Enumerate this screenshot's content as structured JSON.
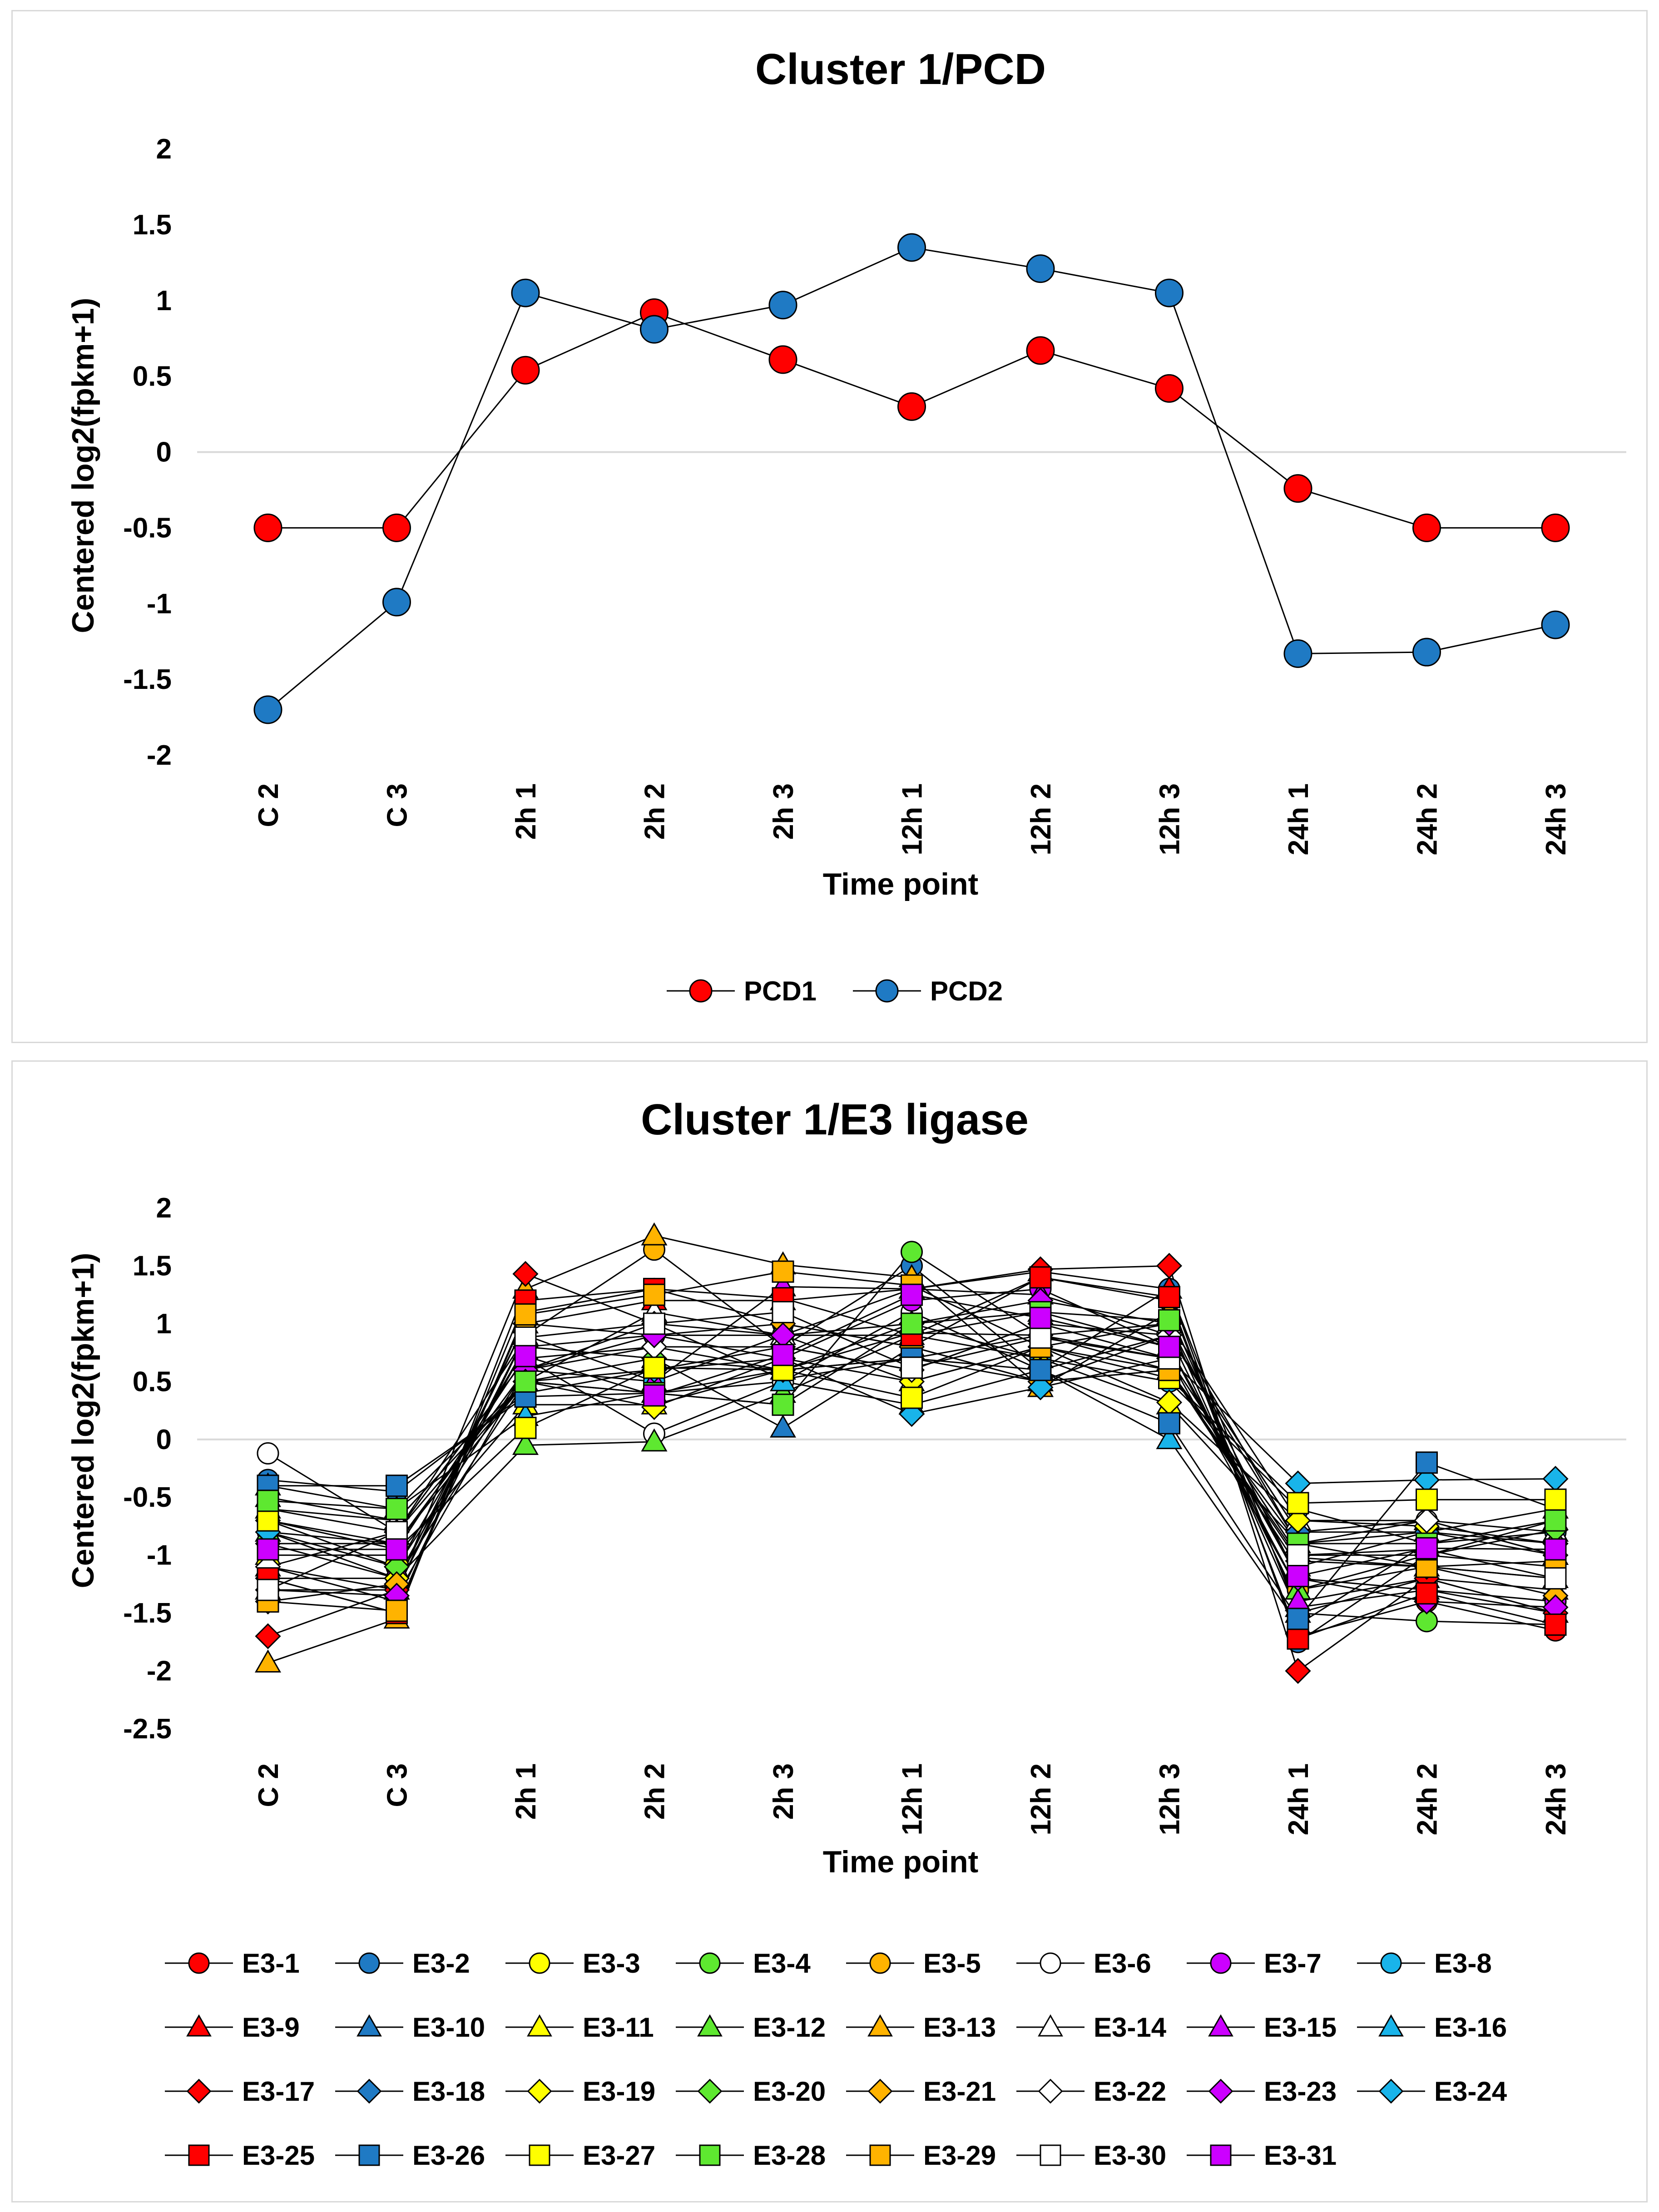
{
  "colors": {
    "red": "#ff0000",
    "blue": "#1f7ac4",
    "yellow": "#ffff00",
    "green": "#5ee830",
    "orange": "#ffb300",
    "white": "#ffffff",
    "magenta": "#cc00ff",
    "cyan": "#19b4ea",
    "line": "#000000",
    "zero_line": "#d9d9d9"
  },
  "chart_data": [
    {
      "type": "line",
      "title": "Cluster 1/PCD",
      "xlabel": "Time point",
      "ylabel": "Centered log2(fpkm+1)",
      "categories": [
        "C 2",
        "C 3",
        "2h 1",
        "2h 2",
        "2h 3",
        "12h 1",
        "12h 2",
        "12h 3",
        "24h 1",
        "24h 2",
        "24h 3"
      ],
      "ylim": [
        -2,
        2
      ],
      "yticks": [
        "-2",
        "-1.5",
        "-1",
        "-0.5",
        "0",
        "0.5",
        "1",
        "1.5",
        "2"
      ],
      "legend_position": "bottom",
      "series": [
        {
          "name": "PCD1",
          "marker": "circle",
          "color": "red",
          "values": [
            -0.5,
            -0.5,
            0.54,
            0.92,
            0.61,
            0.3,
            0.67,
            0.42,
            -0.24,
            -0.5,
            -0.5
          ]
        },
        {
          "name": "PCD2",
          "marker": "circle",
          "color": "blue",
          "values": [
            -1.7,
            -0.99,
            1.05,
            0.81,
            0.97,
            1.35,
            1.21,
            1.05,
            -1.33,
            -1.32,
            -1.14
          ]
        }
      ]
    },
    {
      "type": "line",
      "title": "Cluster 1/E3 ligase",
      "xlabel": "Time point",
      "ylabel": "Centered log2(fpkm+1)",
      "categories": [
        "C 2",
        "C 3",
        "2h 1",
        "2h 2",
        "2h 3",
        "12h 1",
        "12h 2",
        "12h 3",
        "24h 1",
        "24h 2",
        "24h 3"
      ],
      "ylim": [
        -2.5,
        2
      ],
      "yticks": [
        "-2.5",
        "-2",
        "-1.5",
        "-1",
        "-0.5",
        "0",
        "0.5",
        "1",
        "1.5",
        "2"
      ],
      "legend_position": "bottom",
      "series": [
        {
          "name": "E3-1",
          "marker": "circle",
          "color": "red",
          "values": [
            -1.2,
            -1.5,
            1.1,
            1.3,
            1.0,
            0.8,
            1.4,
            1.2,
            -1.7,
            -1.4,
            -1.65
          ]
        },
        {
          "name": "E3-2",
          "marker": "circle",
          "color": "blue",
          "values": [
            -0.35,
            -0.45,
            0.4,
            0.6,
            0.8,
            1.5,
            0.6,
            1.3,
            -1.75,
            -1.0,
            -0.7
          ]
        },
        {
          "name": "E3-3",
          "marker": "circle",
          "color": "yellow",
          "values": [
            -0.8,
            -1.1,
            0.6,
            1.0,
            0.52,
            0.7,
            0.9,
            0.6,
            -0.9,
            -1.1,
            -1.2
          ]
        },
        {
          "name": "E3-4",
          "marker": "circle",
          "color": "green",
          "values": [
            -0.6,
            -0.8,
            0.5,
            0.4,
            0.3,
            1.62,
            0.9,
            1.0,
            -1.5,
            -1.57,
            -1.6
          ]
        },
        {
          "name": "E3-5",
          "marker": "circle",
          "color": "orange",
          "values": [
            -1.1,
            -1.4,
            0.9,
            1.64,
            0.8,
            0.6,
            1.0,
            0.7,
            -1.3,
            -1.0,
            -1.1
          ]
        },
        {
          "name": "E3-6",
          "marker": "circle",
          "color": "white",
          "values": [
            -0.12,
            -0.8,
            0.7,
            0.05,
            0.5,
            1.1,
            0.6,
            0.9,
            -0.8,
            -0.7,
            -1.0
          ]
        },
        {
          "name": "E3-7",
          "marker": "circle",
          "color": "magenta",
          "values": [
            -0.9,
            -1.2,
            0.8,
            0.9,
            0.7,
            1.2,
            1.3,
            0.8,
            -1.2,
            -1.3,
            -1.4
          ]
        },
        {
          "name": "E3-8",
          "marker": "circle",
          "color": "cyan",
          "values": [
            -0.7,
            -0.9,
            0.6,
            0.5,
            0.9,
            0.9,
            0.7,
            0.5,
            -0.6,
            -0.9,
            -0.8
          ]
        },
        {
          "name": "E3-9",
          "marker": "triangle",
          "color": "red",
          "values": [
            -1.3,
            -1.3,
            1.0,
            1.2,
            1.2,
            1.3,
            1.45,
            1.3,
            -1.5,
            -1.2,
            -1.3
          ]
        },
        {
          "name": "E3-10",
          "marker": "triangle",
          "color": "blue",
          "values": [
            -0.5,
            -0.7,
            0.5,
            0.7,
            0.1,
            0.8,
            0.5,
            0.6,
            -1.1,
            -0.8,
            -0.6
          ]
        },
        {
          "name": "E3-11",
          "marker": "triangle",
          "color": "yellow",
          "values": [
            -1.0,
            -1.0,
            0.3,
            0.3,
            0.6,
            1.0,
            0.7,
            0.3,
            -0.9,
            -0.8,
            -1.0
          ]
        },
        {
          "name": "E3-12",
          "marker": "triangle",
          "color": "green",
          "values": [
            -0.8,
            -1.2,
            -0.05,
            -0.02,
            0.4,
            0.9,
            1.1,
            0.8,
            -1.3,
            -1.1,
            -1.2
          ]
        },
        {
          "name": "E3-13",
          "marker": "triangle",
          "color": "orange",
          "values": [
            -1.93,
            -1.55,
            1.3,
            1.76,
            1.51,
            1.4,
            0.45,
            1.1,
            -1.45,
            -1.3,
            -1.5
          ]
        },
        {
          "name": "E3-14",
          "marker": "triangle",
          "color": "white",
          "values": [
            -0.6,
            -0.7,
            0.5,
            1.1,
            0.9,
            0.5,
            0.8,
            1.0,
            -0.7,
            -0.7,
            -0.8
          ]
        },
        {
          "name": "E3-15",
          "marker": "triangle",
          "color": "magenta",
          "values": [
            -1.1,
            -1.3,
            0.9,
            0.5,
            1.32,
            1.3,
            1.25,
            0.9,
            -1.4,
            -1.2,
            -1.5
          ]
        },
        {
          "name": "E3-16",
          "marker": "triangle",
          "color": "cyan",
          "values": [
            -0.4,
            -0.6,
            0.2,
            0.4,
            0.5,
            0.3,
            0.6,
            0.0,
            -1.6,
            -0.9,
            -0.7
          ]
        },
        {
          "name": "E3-17",
          "marker": "diamond",
          "color": "red",
          "values": [
            -1.7,
            -1.3,
            1.43,
            1.0,
            0.9,
            1.3,
            1.47,
            1.5,
            -2.0,
            -1.2,
            -1.5
          ]
        },
        {
          "name": "E3-18",
          "marker": "diamond",
          "color": "blue",
          "values": [
            -0.9,
            -0.9,
            0.6,
            0.8,
            0.6,
            0.7,
            0.5,
            0.9,
            -0.8,
            -0.8,
            -0.9
          ]
        },
        {
          "name": "E3-19",
          "marker": "diamond",
          "color": "yellow",
          "values": [
            -1.2,
            -1.2,
            0.5,
            0.28,
            0.7,
            0.5,
            0.8,
            0.32,
            -0.7,
            -0.75,
            -0.9
          ]
        },
        {
          "name": "E3-20",
          "marker": "diamond",
          "color": "green",
          "values": [
            -0.7,
            -1.1,
            0.8,
            0.7,
            0.6,
            0.92,
            0.9,
            0.7,
            -1.0,
            -1.0,
            -0.78
          ]
        },
        {
          "name": "E3-21",
          "marker": "diamond",
          "color": "orange",
          "values": [
            -1.4,
            -1.25,
            1.0,
            0.9,
            1.0,
            0.8,
            0.5,
            0.6,
            -1.05,
            -1.1,
            -1.35
          ]
        },
        {
          "name": "E3-22",
          "marker": "diamond",
          "color": "white",
          "values": [
            -1.1,
            -0.8,
            0.7,
            0.8,
            0.8,
            0.6,
            1.0,
            0.9,
            -0.9,
            -0.7,
            -1.0
          ]
        },
        {
          "name": "E3-23",
          "marker": "diamond",
          "color": "magenta",
          "values": [
            -1.3,
            -1.35,
            0.6,
            0.9,
            0.9,
            1.0,
            1.2,
            1.0,
            -1.2,
            -1.4,
            -1.45
          ]
        },
        {
          "name": "E3-24",
          "marker": "diamond",
          "color": "cyan",
          "values": [
            -0.8,
            -0.9,
            0.5,
            0.6,
            0.7,
            0.22,
            0.45,
            0.7,
            -0.38,
            -0.35,
            -0.34
          ]
        },
        {
          "name": "E3-25",
          "marker": "square",
          "color": "red",
          "values": [
            -1.2,
            -1.5,
            1.2,
            1.3,
            1.22,
            0.9,
            1.4,
            1.23,
            -1.72,
            -1.33,
            -1.6
          ]
        },
        {
          "name": "E3-26",
          "marker": "square",
          "color": "blue",
          "values": [
            -0.4,
            -0.4,
            0.37,
            0.4,
            0.6,
            0.7,
            0.6,
            0.14,
            -1.55,
            -0.2,
            -0.6
          ]
        },
        {
          "name": "E3-27",
          "marker": "square",
          "color": "yellow",
          "values": [
            -0.7,
            -0.95,
            0.1,
            0.62,
            0.6,
            0.36,
            0.8,
            0.53,
            -0.55,
            -0.52,
            -0.52
          ]
        },
        {
          "name": "E3-28",
          "marker": "square",
          "color": "green",
          "values": [
            -0.53,
            -0.6,
            0.5,
            0.4,
            0.3,
            1.0,
            1.1,
            1.03,
            -0.9,
            -0.9,
            -0.7
          ]
        },
        {
          "name": "E3-29",
          "marker": "square",
          "color": "orange",
          "values": [
            -1.4,
            -1.48,
            1.08,
            1.25,
            1.45,
            1.33,
            0.8,
            0.6,
            -1.02,
            -1.1,
            -1.05
          ]
        },
        {
          "name": "E3-30",
          "marker": "square",
          "color": "white",
          "values": [
            -1.3,
            -0.8,
            0.88,
            1.0,
            1.1,
            0.62,
            0.88,
            0.7,
            -1.0,
            -0.95,
            -1.2
          ]
        },
        {
          "name": "E3-31",
          "marker": "square",
          "color": "magenta",
          "values": [
            -0.95,
            -0.95,
            0.72,
            0.38,
            0.73,
            1.25,
            1.05,
            0.8,
            -1.18,
            -0.94,
            -0.95
          ]
        }
      ]
    }
  ]
}
